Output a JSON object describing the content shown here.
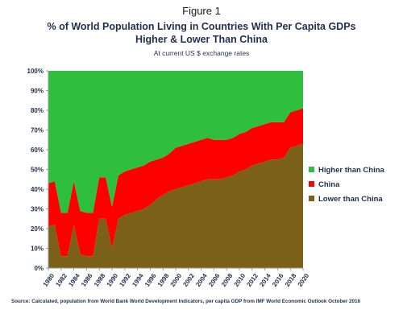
{
  "figure_label": "Figure 1",
  "chart_data": {
    "type": "area",
    "stacked": true,
    "title_line1": "% of World Population Living in Countries With Per Capita GDPs",
    "title_line2": "Higher & Lower Than China",
    "subtitle": "At current US $ exchange rates",
    "xlabel": "",
    "ylabel": "",
    "ylim": [
      0,
      100
    ],
    "y_ticks": [
      "0%",
      "10%",
      "20%",
      "30%",
      "40%",
      "50%",
      "60%",
      "70%",
      "80%",
      "90%",
      "100%"
    ],
    "x_ticks": [
      "1980",
      "1982",
      "1984",
      "1986",
      "1988",
      "1990",
      "1992",
      "1994",
      "1996",
      "1998",
      "2000",
      "2002",
      "2004",
      "2006",
      "2008",
      "2010",
      "2012",
      "2014",
      "2016",
      "2018",
      "2020"
    ],
    "x": [
      1980,
      1981,
      1982,
      1983,
      1984,
      1985,
      1986,
      1987,
      1988,
      1989,
      1990,
      1991,
      1992,
      1993,
      1994,
      1995,
      1996,
      1997,
      1998,
      1999,
      2000,
      2001,
      2002,
      2003,
      2004,
      2005,
      2006,
      2007,
      2008,
      2009,
      2010,
      2011,
      2012,
      2013,
      2014,
      2015,
      2016,
      2017,
      2018,
      2019,
      2020
    ],
    "legend_position": "right",
    "grid": false,
    "series": [
      {
        "name": "Lower than China",
        "color": "#7a6018",
        "values": [
          21,
          22,
          6,
          6,
          22,
          7,
          6,
          6,
          25,
          25,
          10,
          25,
          27,
          28,
          29,
          30,
          32,
          35,
          37,
          39,
          40,
          41,
          42,
          43,
          44,
          45,
          45,
          45,
          46,
          47,
          49,
          50,
          52,
          53,
          54,
          55,
          55,
          56,
          61,
          62,
          63
        ]
      },
      {
        "name": "China",
        "color": "#ff0000",
        "values": [
          22,
          22,
          22,
          22,
          22,
          22,
          22,
          22,
          21,
          21,
          21,
          22,
          22,
          22,
          22,
          22,
          22,
          20,
          19,
          19,
          21,
          21,
          21,
          21,
          21,
          21,
          20,
          20,
          19,
          19,
          19,
          19,
          19,
          19,
          19,
          19,
          19,
          18,
          18,
          18,
          18
        ]
      },
      {
        "name": "Higher than China",
        "color": "#2fbf3f",
        "values": [
          57,
          56,
          72,
          72,
          56,
          71,
          72,
          72,
          54,
          54,
          69,
          53,
          51,
          50,
          49,
          48,
          46,
          45,
          44,
          42,
          39,
          38,
          37,
          36,
          35,
          34,
          35,
          35,
          35,
          34,
          32,
          31,
          29,
          28,
          27,
          26,
          26,
          26,
          21,
          20,
          19
        ]
      }
    ],
    "legend_order": [
      "Higher than China",
      "China",
      "Lower than China"
    ]
  },
  "source": "Source: Calculated, population from World Bank World Development Indicators, per capita GDP from IMF World Economic Outlook October 2016"
}
